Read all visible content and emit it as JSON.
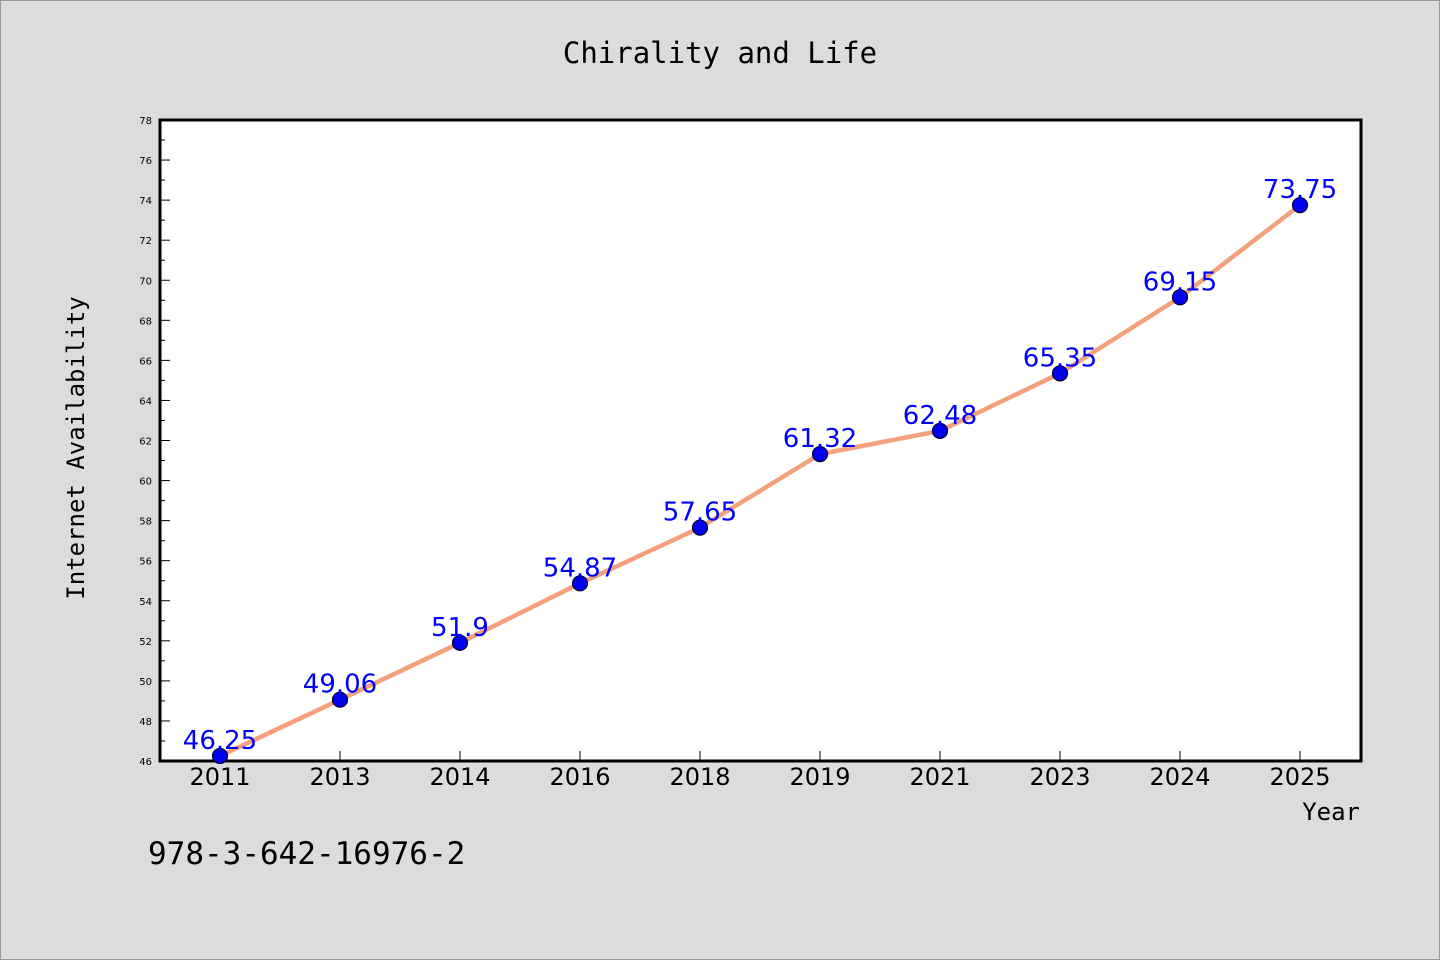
{
  "chart_data": {
    "type": "line",
    "title": "Chirality and Life",
    "xlabel": "Year",
    "ylabel": "Internet Availability",
    "categories": [
      "2011",
      "2013",
      "2014",
      "2016",
      "2018",
      "2019",
      "2021",
      "2023",
      "2024",
      "2025"
    ],
    "series": [
      {
        "values": [
          46.25,
          49.06,
          51.9,
          54.87,
          57.65,
          61.32,
          62.48,
          65.35,
          69.15,
          73.75
        ],
        "labels": [
          "46.25",
          "49.06",
          "51.9",
          "54.87",
          "57.65",
          "61.32",
          "62.48",
          "65.35",
          "69.15",
          "73.75"
        ]
      }
    ],
    "ylim": [
      46,
      78
    ],
    "yticks": [
      46,
      48,
      50,
      52,
      54,
      56,
      58,
      60,
      62,
      64,
      66,
      68,
      70,
      72,
      74,
      76,
      78
    ],
    "grid": false,
    "legend": "none",
    "colors": {
      "line": "#f4a07c",
      "marker": "#0000ee",
      "marker_edge": "#000033",
      "data_label": "#0000ff",
      "plot_background": "#ffffff",
      "figure_background": "#dcdcdc"
    }
  },
  "footer": {
    "code": "978-3-642-16976-2"
  }
}
